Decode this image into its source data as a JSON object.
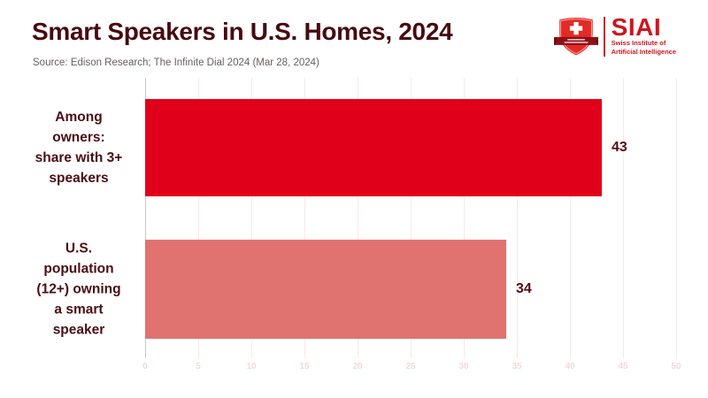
{
  "header": {
    "title": "Smart Speakers in U.S. Homes, 2024",
    "source": "Source: Edison Research; The Infinite Dial 2024 (Mar 28, 2024)"
  },
  "logo": {
    "acronym": "SIAI",
    "subtitle": "Swiss Institute of\nArtificial Intelligence"
  },
  "chart_data": {
    "type": "bar",
    "orientation": "horizontal",
    "title": "Smart Speakers in U.S. Homes, 2024",
    "categories": [
      "Among owners: share with 3+ speakers",
      "U.S. population (12+) owning a smart speaker"
    ],
    "category_display": [
      "Among\nowners:\nshare with 3+\nspeakers",
      "U.S.\npopulation\n(12+) owning\na smart\nspeaker"
    ],
    "values": [
      43,
      34
    ],
    "value_labels": [
      "43",
      "34"
    ],
    "bar_colors": [
      "#e1001a",
      "#e07370"
    ],
    "xlabel": "",
    "ylabel": "",
    "xlim": [
      0,
      50
    ],
    "xticks": [
      0,
      5,
      10,
      15,
      20,
      25,
      30,
      35,
      40,
      45,
      50
    ],
    "grid": true,
    "legend": false
  },
  "colors": {
    "title_text": "#470a10",
    "source_text": "#6b5d5d",
    "category_text": "#4a0e13",
    "value_text": "#550d12",
    "grid_line": "#fbe7e7",
    "axis_line": "#c8c8c8",
    "tick_label": "#f6d8d8",
    "logo_red": "#cf1420",
    "shield_red": "#e42a24",
    "ribbon_red": "#8e1016"
  }
}
